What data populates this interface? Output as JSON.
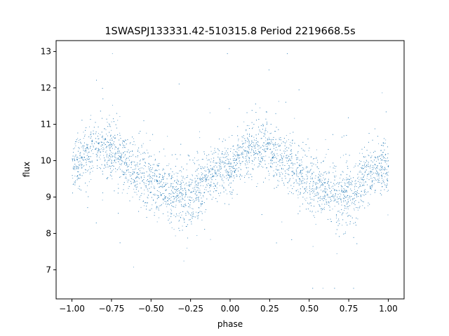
{
  "chart_data": {
    "type": "scatter",
    "title": "1SWASPJ133331.42-510315.8 Period 2219668.5s",
    "xlabel": "phase",
    "ylabel": "flux",
    "xlim": [
      -1.1,
      1.1
    ],
    "ylim": [
      6.2,
      13.3
    ],
    "x_ticks": [
      -1.0,
      -0.75,
      -0.5,
      -0.25,
      0.0,
      0.25,
      0.5,
      0.75,
      1.0
    ],
    "x_tick_labels": [
      "−1.00",
      "−0.75",
      "−0.50",
      "−0.25",
      "0.00",
      "0.25",
      "0.50",
      "0.75",
      "1.00"
    ],
    "y_ticks": [
      7,
      8,
      9,
      10,
      11,
      12,
      13
    ],
    "y_tick_labels": [
      "7",
      "8",
      "9",
      "10",
      "11",
      "12",
      "13"
    ],
    "grid": false,
    "legend": "none",
    "point_color": "#1f77b4",
    "phase_range": [
      -1.0,
      1.0
    ],
    "profile": {
      "phase": [
        0.0,
        0.05,
        0.1,
        0.15,
        0.2,
        0.25,
        0.3,
        0.35,
        0.4,
        0.45,
        0.5,
        0.55,
        0.6,
        0.65,
        0.7,
        0.75,
        0.8,
        0.85,
        0.9,
        0.95,
        1.0
      ],
      "mean_flux": [
        9.8,
        10.0,
        10.2,
        10.35,
        10.4,
        10.3,
        10.1,
        9.95,
        9.8,
        9.65,
        9.45,
        9.3,
        9.2,
        9.1,
        9.0,
        9.05,
        9.3,
        9.5,
        9.7,
        9.8,
        9.8
      ],
      "scatter": [
        0.35,
        0.35,
        0.4,
        0.4,
        0.4,
        0.4,
        0.4,
        0.4,
        0.4,
        0.4,
        0.4,
        0.4,
        0.4,
        0.45,
        0.45,
        0.45,
        0.4,
        0.35,
        0.35,
        0.35,
        0.35
      ]
    },
    "flux_range": [
      6.5,
      12.95
    ]
  }
}
